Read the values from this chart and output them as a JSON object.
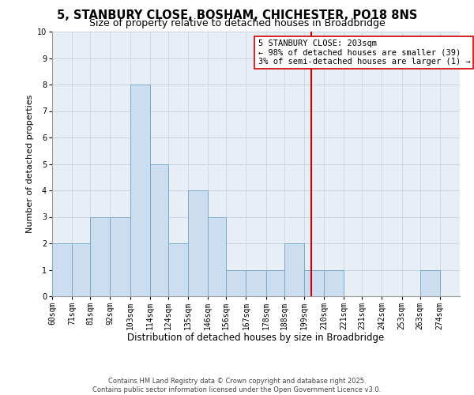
{
  "title": "5, STANBURY CLOSE, BOSHAM, CHICHESTER, PO18 8NS",
  "subtitle": "Size of property relative to detached houses in Broadbridge",
  "xlabel": "Distribution of detached houses by size in Broadbridge",
  "ylabel": "Number of detached properties",
  "bin_labels": [
    "60sqm",
    "71sqm",
    "81sqm",
    "92sqm",
    "103sqm",
    "114sqm",
    "124sqm",
    "135sqm",
    "146sqm",
    "156sqm",
    "167sqm",
    "178sqm",
    "188sqm",
    "199sqm",
    "210sqm",
    "221sqm",
    "231sqm",
    "242sqm",
    "253sqm",
    "263sqm",
    "274sqm"
  ],
  "bin_edges": [
    60,
    71,
    81,
    92,
    103,
    114,
    124,
    135,
    146,
    156,
    167,
    178,
    188,
    199,
    210,
    221,
    231,
    242,
    253,
    263,
    274,
    285
  ],
  "counts": [
    2,
    2,
    3,
    3,
    8,
    5,
    2,
    4,
    3,
    1,
    1,
    1,
    2,
    1,
    1,
    0,
    0,
    0,
    0,
    1,
    0
  ],
  "bar_color": "#ccddf0",
  "bar_edge_color": "#7aaac8",
  "property_line_x": 203,
  "property_line_color": "#cc0000",
  "annotation_line1": "5 STANBURY CLOSE: 203sqm",
  "annotation_line2": "← 98% of detached houses are smaller (39)",
  "annotation_line3": "3% of semi-detached houses are larger (1) →",
  "annotation_box_color": "#ffffff",
  "annotation_box_edge": "#cc0000",
  "ylim": [
    0,
    10
  ],
  "yticks": [
    0,
    1,
    2,
    3,
    4,
    5,
    6,
    7,
    8,
    9,
    10
  ],
  "grid_color": "#c8d4e0",
  "background_color": "#ffffff",
  "plot_bg_color": "#e8eef5",
  "footer_line1": "Contains HM Land Registry data © Crown copyright and database right 2025.",
  "footer_line2": "Contains public sector information licensed under the Open Government Licence v3.0.",
  "title_fontsize": 10.5,
  "subtitle_fontsize": 9,
  "xlabel_fontsize": 8.5,
  "ylabel_fontsize": 8,
  "tick_fontsize": 7,
  "annotation_fontsize": 7.5,
  "footer_fontsize": 6
}
